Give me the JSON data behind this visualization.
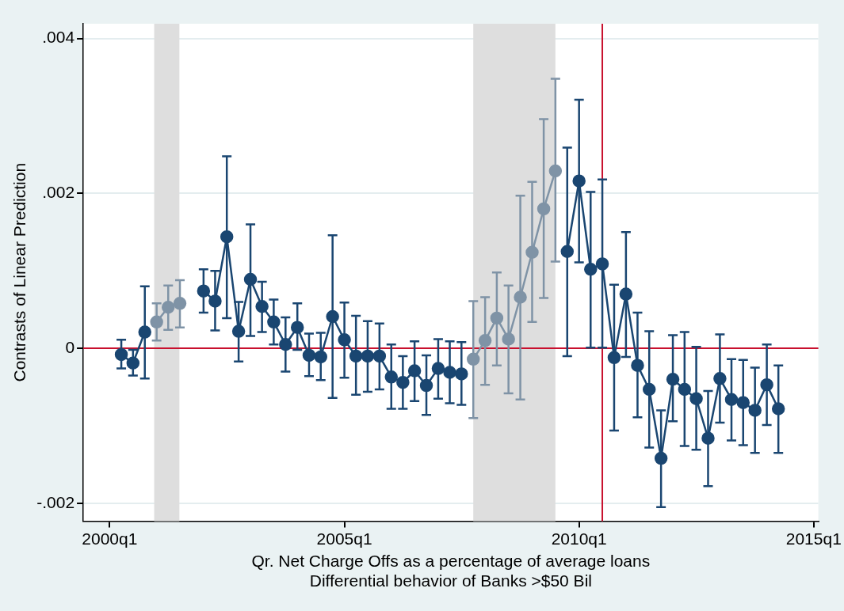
{
  "chart_data": {
    "type": "line",
    "ylabel": "Contrasts of Linear Prediction",
    "xlabel": "Qr. Net Charge Offs as a percentage of average loans\nDifferential behavior of Banks >$50 Bil",
    "x": [
      "2000-04",
      "2000-07",
      "2000-10",
      "2001-01",
      "2001-04",
      "2001-07",
      "2002-01",
      "2002-04",
      "2002-07",
      "2002-10",
      "2003-01",
      "2003-04",
      "2003-07",
      "2003-10",
      "2004-01",
      "2004-04",
      "2004-07",
      "2004-10",
      "2005-01",
      "2005-04",
      "2005-07",
      "2005-10",
      "2006-01",
      "2006-04",
      "2006-07",
      "2006-10",
      "2007-01",
      "2007-04",
      "2007-07",
      "2007-10",
      "2008-01",
      "2008-04",
      "2008-07",
      "2008-10",
      "2009-01",
      "2009-04",
      "2009-07",
      "2009-10",
      "2010-01",
      "2010-04",
      "2010-07",
      "2010-10",
      "2011-01",
      "2011-04",
      "2011-07",
      "2011-10",
      "2012-01",
      "2012-04",
      "2012-07",
      "2012-10",
      "2013-01",
      "2013-04",
      "2013-07",
      "2013-10",
      "2014-01",
      "2014-04"
    ],
    "series": [
      {
        "color": "#1a4671",
        "values": [
          -8e-05,
          -0.00019,
          0.00021,
          null,
          null,
          null,
          0.00074,
          0.00061,
          0.00144,
          0.00022,
          0.00089,
          0.00054,
          0.00034,
          5e-05,
          0.00027,
          -9e-05,
          -0.00011,
          0.00041,
          0.00011,
          -0.0001,
          -0.0001,
          -0.0001,
          -0.00037,
          -0.00044,
          -0.00029,
          -0.00048,
          -0.00026,
          -0.00031,
          -0.00033,
          null,
          null,
          null,
          null,
          null,
          null,
          null,
          null,
          0.00125,
          0.00216,
          0.00102,
          0.00109,
          -0.00012,
          0.0007,
          -0.00022,
          -0.00053,
          -0.00142,
          -0.0004,
          -0.00053,
          -0.00065,
          -0.00116,
          -0.00039,
          -0.00066,
          -0.0007,
          -0.0008,
          -0.00047,
          -0.00078
        ],
        "errors": [
          [
            -0.00026,
            0.00011
          ],
          [
            -0.00035,
            -2e-05
          ],
          [
            -0.00039,
            0.0008
          ],
          null,
          null,
          null,
          [
            0.00046,
            0.00102
          ],
          [
            0.00023,
            0.001
          ],
          [
            0.00039,
            0.00248
          ],
          [
            -0.00017,
            0.0006
          ],
          [
            0.00016,
            0.0016
          ],
          [
            0.00021,
            0.00086
          ],
          [
            5e-05,
            0.00063
          ],
          [
            -0.0003,
            0.0004
          ],
          [
            -2e-05,
            0.00058
          ],
          [
            -0.00036,
            0.00019
          ],
          [
            -0.00041,
            0.0002
          ],
          [
            -0.00064,
            0.00146
          ],
          [
            -0.00038,
            0.00059
          ],
          [
            -0.0006,
            0.00042
          ],
          [
            -0.00056,
            0.00035
          ],
          [
            -0.00053,
            0.00032
          ],
          [
            -0.00078,
            5e-05
          ],
          [
            -0.00078,
            -0.0001
          ],
          [
            -0.00068,
            9e-05
          ],
          [
            -0.00086,
            -9e-05
          ],
          [
            -0.00065,
            0.00012
          ],
          [
            -0.00071,
            9e-05
          ],
          [
            -0.00073,
            8e-05
          ],
          null,
          null,
          null,
          null,
          null,
          null,
          null,
          null,
          [
            -0.0001,
            0.00259
          ],
          [
            0.00111,
            0.00321
          ],
          [
            1e-05,
            0.00202
          ],
          [
            1e-05,
            0.00218
          ],
          [
            -0.00106,
            0.00082
          ],
          [
            -0.00011,
            0.0015
          ],
          [
            -0.00089,
            0.00046
          ],
          [
            -0.00128,
            0.00022
          ],
          [
            -0.00205,
            -0.0008
          ],
          [
            -0.00094,
            0.00017
          ],
          [
            -0.00126,
            0.00021
          ],
          [
            -0.00131,
            2e-05
          ],
          [
            -0.00178,
            -0.00055
          ],
          [
            -0.00096,
            0.00018
          ],
          [
            -0.00119,
            -0.00014
          ],
          [
            -0.00125,
            -0.00015
          ],
          [
            -0.00135,
            -0.00025
          ],
          [
            -0.00099,
            5e-05
          ],
          [
            -0.00135,
            -0.00022
          ]
        ]
      },
      {
        "color": "#7f93a6",
        "x": [
          "2001-01",
          "2001-04",
          "2001-07"
        ],
        "values": [
          0.00034,
          0.00053,
          0.00058
        ],
        "errors": [
          [
            0.0001,
            0.00058
          ],
          [
            0.00024,
            0.00081
          ],
          [
            0.00027,
            0.00088
          ]
        ]
      },
      {
        "color": "#7f93a6",
        "x": [
          "2007-10",
          "2008-01",
          "2008-04",
          "2008-07",
          "2008-10",
          "2009-01",
          "2009-04",
          "2009-07"
        ],
        "values": [
          -0.00014,
          0.0001,
          0.00039,
          0.00012,
          0.00066,
          0.00124,
          0.0018,
          0.00229
        ],
        "errors": [
          [
            -0.0009,
            0.00061
          ],
          [
            -0.00047,
            0.00066
          ],
          [
            -0.00022,
            0.00098
          ],
          [
            -0.00058,
            0.00081
          ],
          [
            -0.00066,
            0.00197
          ],
          [
            0.00034,
            0.00215
          ],
          [
            0.00065,
            0.00296
          ],
          [
            0.00112,
            0.00348
          ]
        ]
      }
    ],
    "xlim": [
      "1999-06-10",
      "2015-02-06"
    ],
    "xticks": [
      {
        "value": "2000-01",
        "label": "2000q1"
      },
      {
        "value": "2005-01",
        "label": "2005q1"
      },
      {
        "value": "2010-01",
        "label": "2010q1"
      },
      {
        "value": "2015-01",
        "label": "2015q1"
      }
    ],
    "ylim": [
      -0.00223,
      0.00419
    ],
    "yticks": [
      {
        "value": -0.002,
        "label": "-.002"
      },
      {
        "value": 0,
        "label": "0"
      },
      {
        "value": 0.002,
        "label": ".002"
      },
      {
        "value": 0.004,
        "label": ".004"
      }
    ],
    "ref_lines": [
      {
        "axis": "y",
        "value": 0,
        "color": "#c8102e"
      },
      {
        "axis": "x",
        "value": "2010-07-01",
        "color": "#c8102e"
      }
    ],
    "bands": [
      {
        "axis": "x",
        "from": "2000-12-13",
        "to": "2001-06-27",
        "color": "#dedede"
      },
      {
        "axis": "x",
        "from": "2007-10-01",
        "to": "2009-07-01",
        "color": "#dedede"
      }
    ],
    "grid": "y",
    "legend": false,
    "marker": "circle",
    "line_style": "solid"
  }
}
